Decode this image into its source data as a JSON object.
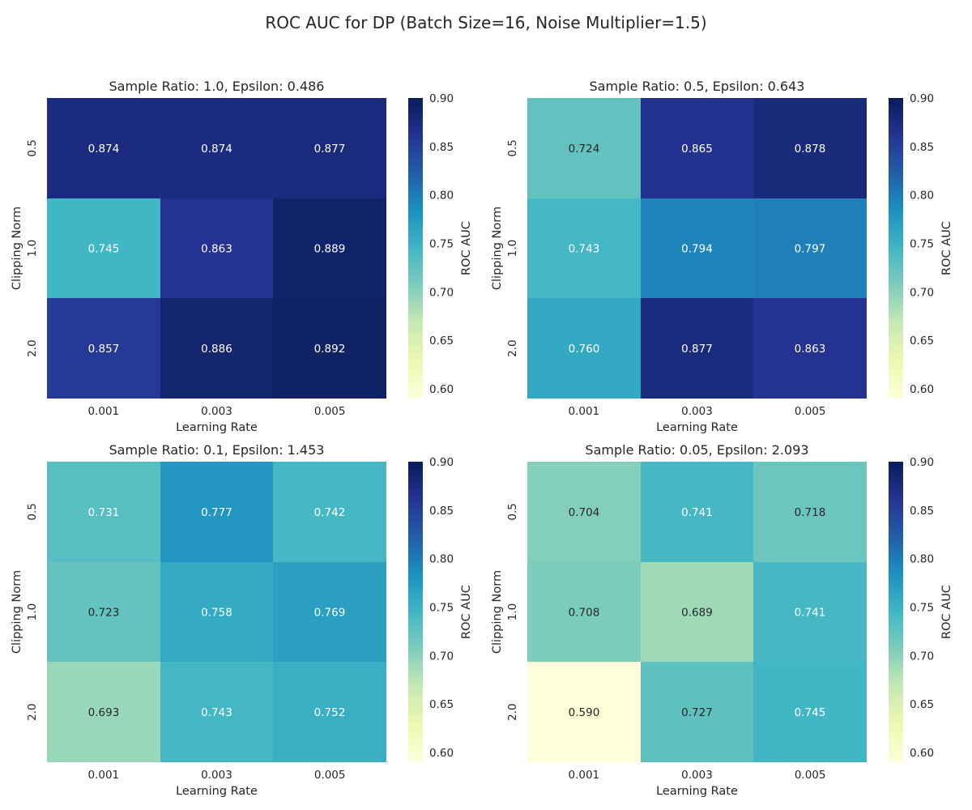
{
  "chart_data": {
    "type": "heatmap",
    "title": "ROC AUC for DP (Batch Size=16, Noise Multiplier=1.5)",
    "colormap": [
      "#ffffd9",
      "#edf8b1",
      "#c7e9b4",
      "#7fcdbb",
      "#41b6c4",
      "#1d91c0",
      "#225ea8",
      "#253494",
      "#081d58"
    ],
    "panels": [
      {
        "title": "Sample Ratio: 1.0, Epsilon: 0.486",
        "xlabel": "Learning Rate",
        "ylabel": "Clipping Norm",
        "colorbar_label": "ROC AUC",
        "x_categories": [
          "0.001",
          "0.003",
          "0.005"
        ],
        "y_categories": [
          "0.5",
          "1.0",
          "2.0"
        ],
        "values": [
          [
            0.874,
            0.874,
            0.877
          ],
          [
            0.745,
            0.863,
            0.889
          ],
          [
            0.857,
            0.886,
            0.892
          ]
        ],
        "labels": [
          [
            "0.874",
            "0.874",
            "0.877"
          ],
          [
            "0.745",
            "0.863",
            "0.889"
          ],
          [
            "0.857",
            "0.886",
            "0.892"
          ]
        ],
        "vmin": 0.59,
        "vmax": 0.9,
        "colorbar_ticks": [
          "0.60",
          "0.65",
          "0.70",
          "0.75",
          "0.80",
          "0.85",
          "0.90"
        ]
      },
      {
        "title": "Sample Ratio: 0.5, Epsilon: 0.643",
        "xlabel": "Learning Rate",
        "ylabel": "Clipping Norm",
        "colorbar_label": "ROC AUC",
        "x_categories": [
          "0.001",
          "0.003",
          "0.005"
        ],
        "y_categories": [
          "0.5",
          "1.0",
          "2.0"
        ],
        "values": [
          [
            0.724,
            0.865,
            0.878
          ],
          [
            0.743,
            0.794,
            0.797
          ],
          [
            0.76,
            0.877,
            0.863
          ]
        ],
        "labels": [
          [
            "0.724",
            "0.865",
            "0.878"
          ],
          [
            "0.743",
            "0.794",
            "0.797"
          ],
          [
            "0.760",
            "0.877",
            "0.863"
          ]
        ],
        "vmin": 0.59,
        "vmax": 0.9,
        "colorbar_ticks": [
          "0.60",
          "0.65",
          "0.70",
          "0.75",
          "0.80",
          "0.85",
          "0.90"
        ]
      },
      {
        "title": "Sample Ratio: 0.1, Epsilon: 1.453",
        "xlabel": "Learning Rate",
        "ylabel": "Clipping Norm",
        "colorbar_label": "ROC AUC",
        "x_categories": [
          "0.001",
          "0.003",
          "0.005"
        ],
        "y_categories": [
          "0.5",
          "1.0",
          "2.0"
        ],
        "values": [
          [
            0.731,
            0.777,
            0.742
          ],
          [
            0.723,
            0.758,
            0.769
          ],
          [
            0.693,
            0.743,
            0.752
          ]
        ],
        "labels": [
          [
            "0.731",
            "0.777",
            "0.742"
          ],
          [
            "0.723",
            "0.758",
            "0.769"
          ],
          [
            "0.693",
            "0.743",
            "0.752"
          ]
        ],
        "vmin": 0.59,
        "vmax": 0.9,
        "colorbar_ticks": [
          "0.60",
          "0.65",
          "0.70",
          "0.75",
          "0.80",
          "0.85",
          "0.90"
        ]
      },
      {
        "title": "Sample Ratio: 0.05, Epsilon: 2.093",
        "xlabel": "Learning Rate",
        "ylabel": "Clipping Norm",
        "colorbar_label": "ROC AUC",
        "x_categories": [
          "0.001",
          "0.003",
          "0.005"
        ],
        "y_categories": [
          "0.5",
          "1.0",
          "2.0"
        ],
        "values": [
          [
            0.704,
            0.741,
            0.718
          ],
          [
            0.708,
            0.689,
            0.741
          ],
          [
            0.59,
            0.727,
            0.745
          ]
        ],
        "labels": [
          [
            "0.704",
            "0.741",
            "0.718"
          ],
          [
            "0.708",
            "0.689",
            "0.741"
          ],
          [
            "0.590",
            "0.727",
            "0.745"
          ]
        ],
        "vmin": 0.59,
        "vmax": 0.9,
        "colorbar_ticks": [
          "0.60",
          "0.65",
          "0.70",
          "0.75",
          "0.80",
          "0.85",
          "0.90"
        ]
      }
    ]
  }
}
